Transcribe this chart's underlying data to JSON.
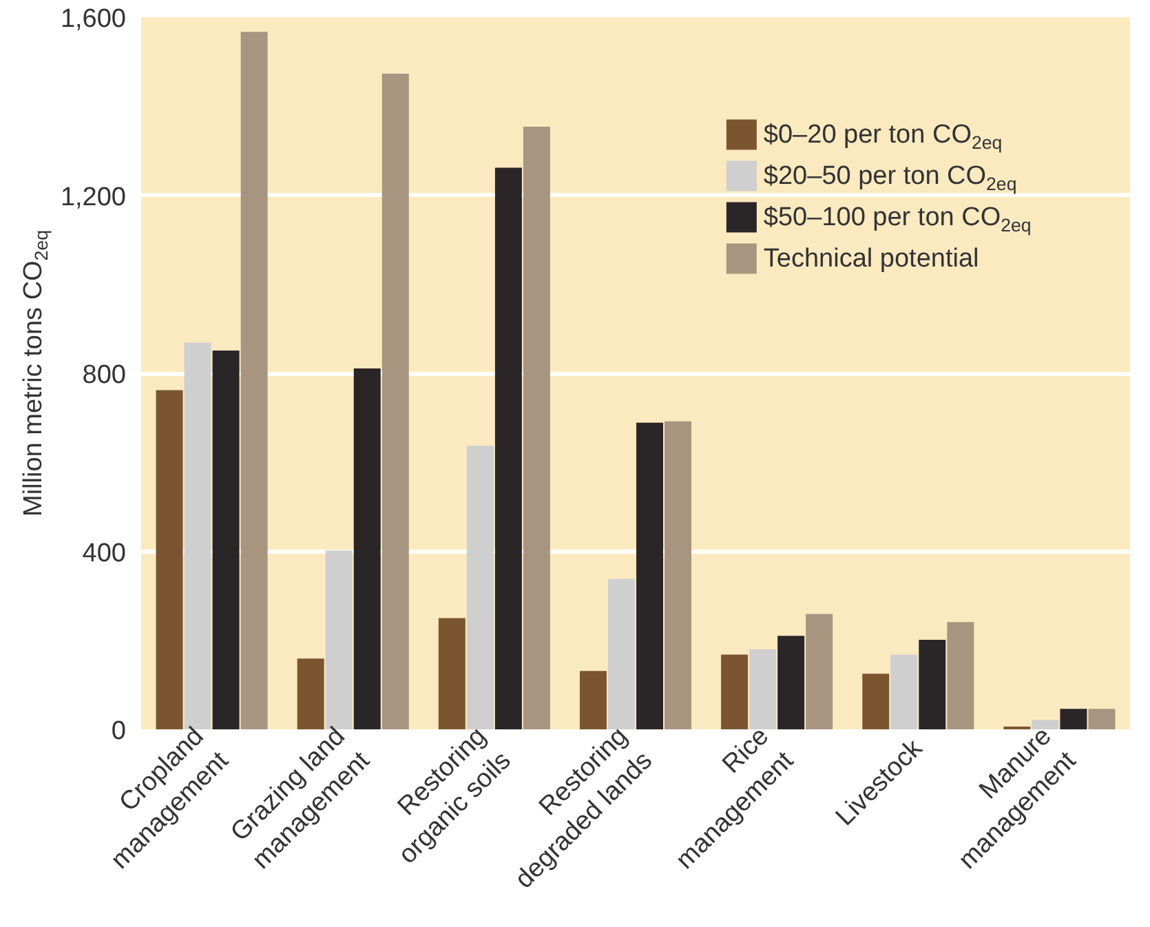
{
  "chart_data": {
    "type": "bar",
    "ylabel": "Million metric tons CO$_{2eq}$",
    "categories": [
      "Cropland\nmanagement",
      "Grazing land\nmanagement",
      "Restoring\norganic soils",
      "Restoring\ndegraded lands",
      "Rice\nmanagement",
      "Livestock",
      "Manure\nmanagement"
    ],
    "series": [
      {
        "name": "$0–20 per ton CO$_{2eq}$",
        "color": "#7b5530",
        "values": [
          762,
          159,
          250,
          131,
          168,
          125,
          6
        ]
      },
      {
        "name": "$20–50 per ton CO$_{2eq}$",
        "color": "#cfcfcf",
        "values": [
          869,
          402,
          637,
          338,
          180,
          168,
          21
        ]
      },
      {
        "name": "$50–100 per ton CO$_{2eq}$",
        "color": "#2a2527",
        "values": [
          851,
          811,
          1262,
          689,
          210,
          201,
          46
        ]
      },
      {
        "name": "Technical potential",
        "color": "#a89580",
        "values": [
          1567,
          1473,
          1354,
          692,
          259,
          241,
          46
        ]
      }
    ],
    "ylim": [
      0,
      1600
    ],
    "yticks": [
      0,
      400,
      800,
      {
        "value": 1200,
        "label": "1,200"
      },
      {
        "value": 1600,
        "label": "1,600"
      }
    ],
    "grid": "y",
    "legend": "top right"
  }
}
